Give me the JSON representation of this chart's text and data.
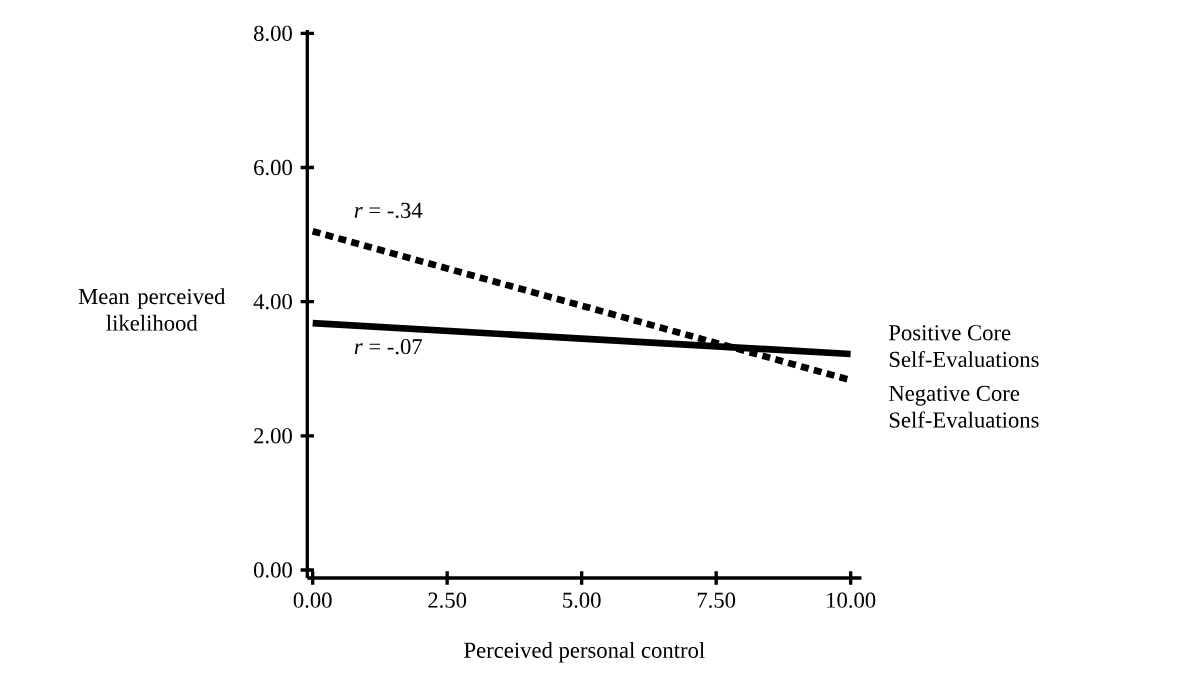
{
  "chart_data": {
    "type": "line",
    "xlabel": "Perceived personal control",
    "ylabel": "Mean perceived likelihood",
    "x": [
      0,
      10
    ],
    "series": [
      {
        "name": "Positive Core Self-Evaluations",
        "color": "#000000",
        "values": [
          3.68,
          3.22
        ],
        "line_style": "solid"
      },
      {
        "name": "Negative Core Self-Evaluations",
        "color": "#000000",
        "values": [
          5.05,
          2.83
        ],
        "line_style": "dashed"
      }
    ],
    "annotations": [
      "*r* = -.34",
      "*r* = -.07"
    ],
    "xlim": [
      -0.1,
      10.2
    ],
    "ylim": [
      -0.12,
      8.05
    ],
    "xticks": [
      {
        "value": 0,
        "label": "0.00"
      },
      {
        "value": 2.5,
        "label": "2.50"
      },
      {
        "value": 5,
        "label": "5.00"
      },
      {
        "value": 7.5,
        "label": "7.50"
      },
      {
        "value": 10,
        "label": "10.00"
      }
    ],
    "yticks": [
      {
        "value": 0,
        "label": "0.00"
      },
      {
        "value": 2,
        "label": "2.00"
      },
      {
        "value": 4,
        "label": "4.00"
      },
      {
        "value": 6,
        "label": "6.00"
      },
      {
        "value": 8,
        "label": "8.00"
      }
    ],
    "legend": "right",
    "marker": "none",
    "grid": false
  }
}
